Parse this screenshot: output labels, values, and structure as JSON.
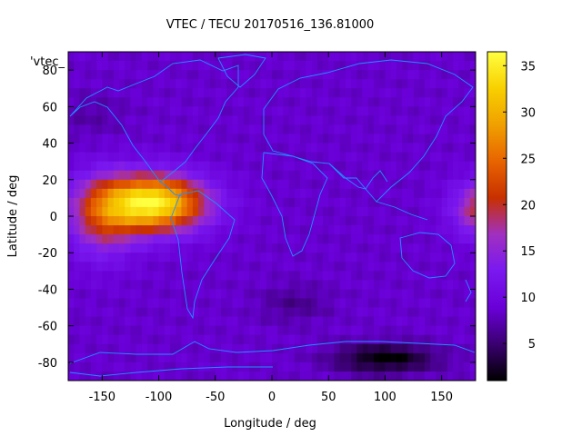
{
  "chart_data": {
    "type": "heatmap",
    "title": "VTEC / TECU 20170516_136.81000",
    "xlabel": "Longitude / deg",
    "ylabel": "Latitude / deg",
    "xlim": [
      -180,
      180
    ],
    "ylim": [
      -90,
      90
    ],
    "x_ticks": [
      -150,
      -100,
      -50,
      0,
      50,
      100,
      150
    ],
    "y_ticks": [
      -80,
      -60,
      -40,
      -20,
      0,
      20,
      40,
      60,
      80
    ],
    "colorbar": {
      "range": [
        1,
        36.5
      ],
      "ticks": [
        5,
        10,
        15,
        20,
        25,
        30,
        35
      ],
      "stops": [
        "#000000",
        "#3a0070",
        "#6a00d8",
        "#7a18f0",
        "#a030c0",
        "#c83000",
        "#e86400",
        "#f0a000",
        "#f8d000",
        "#ffff40"
      ]
    },
    "legend_label": "'vtec_",
    "gridded_values": "estimated VTEC field; peak ~35 TECU near lon -100, lat 8; secondary maximum ~20 TECU at east edge near lat 5; minimum ~1-3 TECU over Antarctic region lon 60-150",
    "field_model": {
      "background": 8.5,
      "features": [
        {
          "lon": -105,
          "lat": 7,
          "amp": 27,
          "sx": 45,
          "sy": 15
        },
        {
          "lon": -150,
          "lat": 0,
          "amp": 10,
          "sx": 30,
          "sy": 22
        },
        {
          "lon": 190,
          "lat": 4,
          "amp": 13,
          "sx": 28,
          "sy": 15
        },
        {
          "lon": 100,
          "lat": -78,
          "amp": -7.5,
          "sx": 45,
          "sy": 8
        },
        {
          "lon": 20,
          "lat": -48,
          "amp": -2.5,
          "sx": 30,
          "sy": 10
        },
        {
          "lon": -160,
          "lat": 55,
          "amp": -1.5,
          "sx": 30,
          "sy": 12
        }
      ]
    }
  }
}
